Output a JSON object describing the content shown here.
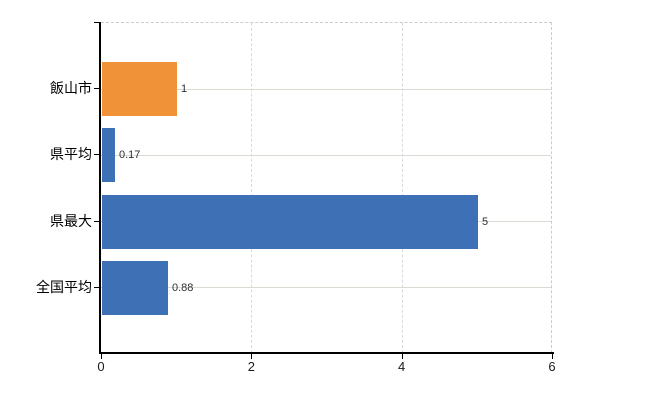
{
  "chart_data": {
    "type": "bar",
    "orientation": "horizontal",
    "title": "",
    "xlabel": "",
    "ylabel": "",
    "categories": [
      "飯山市",
      "県平均",
      "県最大",
      "全国平均"
    ],
    "values": [
      1,
      0.17,
      5,
      0.88
    ],
    "value_labels": [
      "1",
      "0.17",
      "5",
      "0.88"
    ],
    "bar_colors": [
      "#EF9238",
      "#3E70B6",
      "#3E70B6",
      "#3E70B6"
    ],
    "xlim": [
      0,
      6
    ],
    "xtick_values": [
      0,
      2,
      4,
      6
    ],
    "xtick_labels": [
      "0",
      "2",
      "4",
      "6"
    ],
    "grid": true,
    "gridline_vertical_at": [
      2,
      4
    ],
    "legend": false,
    "colors": {
      "highlight_bar": "#EF9238",
      "default_bar": "#3E70B6",
      "axis": "#000000",
      "hgrid": "#d6ddd2",
      "vgrid": "#d9d9d9",
      "border_dashed": "#cccccc",
      "value_text": "#303030",
      "label_text": "#000000"
    }
  }
}
